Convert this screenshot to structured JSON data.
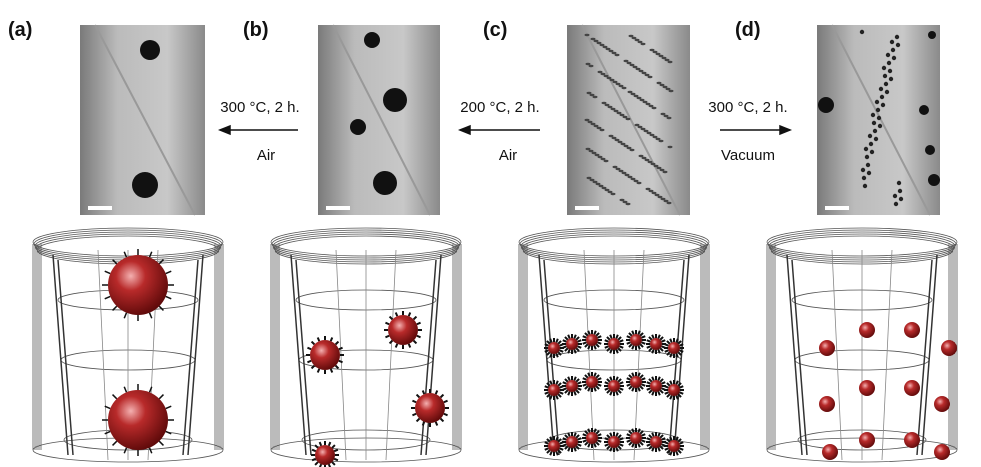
{
  "panels": [
    {
      "label": "(a)"
    },
    {
      "label": "(b)"
    },
    {
      "label": "(c)"
    },
    {
      "label": "(d)"
    }
  ],
  "arrows": [
    {
      "condition": "300 °C, 2 h.",
      "atmosphere": "Air"
    },
    {
      "condition": "200 °C, 2 h.",
      "atmosphere": "Air"
    },
    {
      "condition": "300 °C, 2 h.",
      "atmosphere": "Vacuum"
    }
  ]
}
